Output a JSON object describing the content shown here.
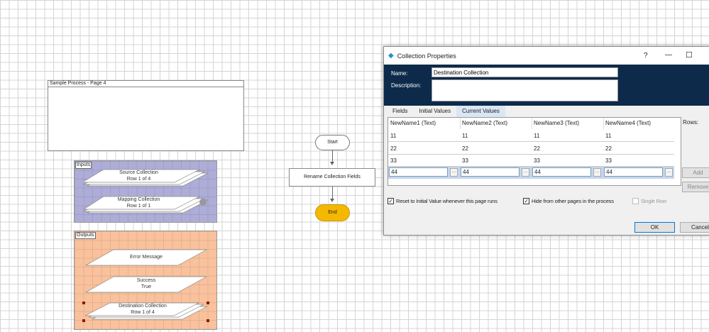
{
  "canvas": {
    "page_title": "Sample Process - Page 4",
    "inputs": {
      "label": "Inputs",
      "color": "#aeadd8",
      "items": [
        {
          "name": "Source Collection",
          "sub": "Row 1 of 4"
        },
        {
          "name": "Mapping Collection",
          "sub": "Row 1 of 1"
        }
      ]
    },
    "outputs": {
      "label": "Outputs",
      "color": "#f9c19c",
      "items": [
        {
          "name": "Error Message",
          "sub": ""
        },
        {
          "name": "Success",
          "sub": "True"
        },
        {
          "name": "Destination Collection",
          "sub": "Row 1 of 4"
        }
      ]
    },
    "flow": {
      "start": "Start",
      "action": "Rename Collection Fields",
      "end": "End",
      "end_color": "#f5b800"
    }
  },
  "dialog": {
    "title": "Collection Properties",
    "help": "?",
    "minimize": "—",
    "maximize": "☐",
    "name_label": "Name:",
    "name_value": "Destination Collection",
    "description_label": "Description:",
    "description_value": "",
    "header_color": "#0d2a4a",
    "tabs": [
      "Fields",
      "Initial Values",
      "Current Values"
    ],
    "active_tab": "Current Values",
    "columns": [
      "NewName1  (Text)",
      "NewName2  (Text)",
      "NewName3  (Text)",
      "NewName4  (Text)"
    ],
    "rows": [
      [
        "11",
        "11",
        "11",
        "11"
      ],
      [
        "22",
        "22",
        "22",
        "22"
      ],
      [
        "33",
        "33",
        "33",
        "33"
      ]
    ],
    "edit_row": [
      "44",
      "44",
      "44",
      "44"
    ],
    "ellipsis": "...",
    "rows_label": "Rows:",
    "add": "Add",
    "remove": "Remove",
    "reset_checkbox": {
      "label": "Reset to Initial Value whenever this page runs",
      "checked": true
    },
    "hide_checkbox": {
      "label": "Hide from other pages in the process",
      "checked": true
    },
    "single_row_checkbox": {
      "label": "Single Row",
      "checked": false,
      "disabled": true
    },
    "ok": "OK",
    "cancel": "Cancel"
  }
}
